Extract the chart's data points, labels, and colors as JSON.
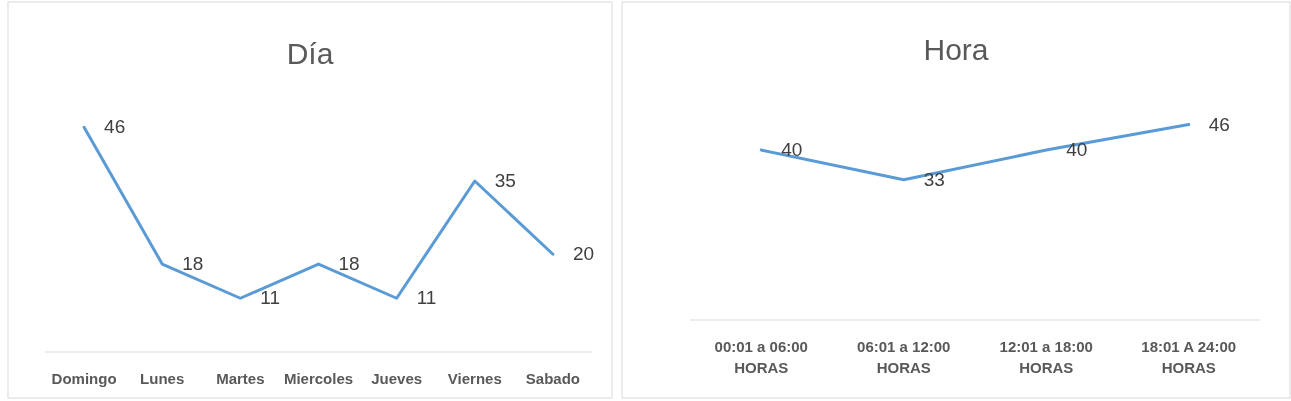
{
  "chart_data": [
    {
      "type": "line",
      "title": "Día",
      "categories": [
        "Domingo",
        "Lunes",
        "Martes",
        "Miercoles",
        "Jueves",
        "Viernes",
        "Sabado"
      ],
      "series": [
        {
          "color": "#5b9bd5",
          "values": [
            46,
            18,
            11,
            18,
            11,
            35,
            20
          ]
        }
      ],
      "data_labels": true
    },
    {
      "type": "line",
      "title": "Hora",
      "categories": [
        "00:01 a 06:00 HORAS",
        "06:01 a 12:00 HORAS",
        "12:01 a 18:00 HORAS",
        "18:01 A 24:00 HORAS"
      ],
      "series": [
        {
          "color": "#5b9bd5",
          "values": [
            40,
            33,
            40,
            46
          ]
        }
      ],
      "data_labels": true
    }
  ]
}
